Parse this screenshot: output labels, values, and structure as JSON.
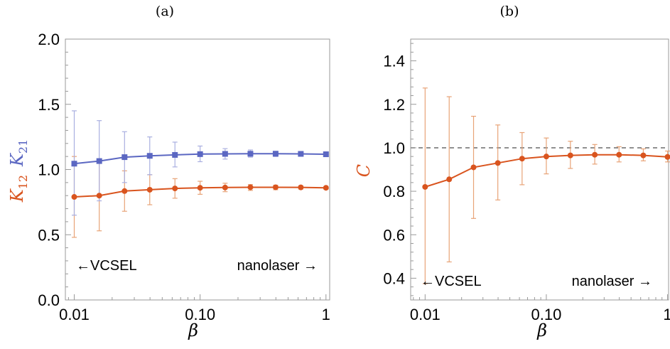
{
  "colors": {
    "series_orange": "#d9541e",
    "series_blue": "#5b67c2",
    "errbar_orange": "#e8a377",
    "errbar_blue": "#a9afe0",
    "reference_line": "#777777"
  },
  "chart_data": [
    {
      "panel": "(a)",
      "type": "line",
      "xscale": "log",
      "xlabel": "β",
      "ylabel_parts": [
        {
          "main": "K",
          "sub": "12",
          "series": 0
        },
        {
          "main": "K",
          "sub": "21",
          "series": 1
        }
      ],
      "xlim": [
        0.0085,
        1.07
      ],
      "ylim": [
        0.0,
        2.0
      ],
      "xticks": [
        0.01,
        0.1,
        1
      ],
      "xtick_labels": [
        "0.01",
        "0.10",
        "1"
      ],
      "yticks": [
        0,
        0.5,
        1,
        1.5,
        2
      ],
      "ytick_labels": [
        "0.0",
        "0.5",
        "1.0",
        "1.5",
        "2.0"
      ],
      "grid": false,
      "annotations": {
        "left": "←VCSEL",
        "right": "nanolaser →"
      },
      "series": [
        {
          "marker": "circle",
          "x": [
            0.01,
            0.0158,
            0.0251,
            0.0398,
            0.0631,
            0.1,
            0.158,
            0.251,
            0.398,
            0.631,
            1.0
          ],
          "values": [
            0.79,
            0.8,
            0.835,
            0.845,
            0.855,
            0.86,
            0.862,
            0.864,
            0.864,
            0.863,
            0.86
          ],
          "err_low": [
            0.48,
            0.53,
            0.68,
            0.73,
            0.78,
            0.81,
            0.83,
            0.84,
            0.845,
            0.85,
            0.85
          ],
          "err_high": [
            1.1,
            1.07,
            0.99,
            0.96,
            0.93,
            0.91,
            0.895,
            0.885,
            0.88,
            0.875,
            0.87
          ]
        },
        {
          "marker": "square",
          "x": [
            0.01,
            0.0158,
            0.0251,
            0.0398,
            0.0631,
            0.1,
            0.158,
            0.251,
            0.398,
            0.631,
            1.0
          ],
          "values": [
            1.045,
            1.065,
            1.095,
            1.105,
            1.112,
            1.118,
            1.12,
            1.121,
            1.121,
            1.12,
            1.117
          ],
          "err_low": [
            0.65,
            0.76,
            0.9,
            0.96,
            1.02,
            1.06,
            1.08,
            1.095,
            1.1,
            1.105,
            1.105
          ],
          "err_high": [
            1.45,
            1.375,
            1.29,
            1.25,
            1.21,
            1.18,
            1.16,
            1.15,
            1.14,
            1.135,
            1.13
          ]
        }
      ]
    },
    {
      "panel": "(b)",
      "type": "line",
      "xscale": "log",
      "xlabel": "β",
      "ylabel": "C",
      "xlim": [
        0.0076,
        1.02
      ],
      "ylim": [
        0.3,
        1.5
      ],
      "xticks": [
        0.01,
        0.1,
        1
      ],
      "xtick_labels": [
        "0.01",
        "0.10",
        "1"
      ],
      "yticks": [
        0.4,
        0.6,
        0.8,
        1.0,
        1.2,
        1.4
      ],
      "ytick_labels": [
        "0.4",
        "0.6",
        "0.8",
        "1.0",
        "1.2",
        "1.4"
      ],
      "reference_line": 1.0,
      "grid": false,
      "annotations": {
        "left": "←VCSEL",
        "right": "nanolaser →"
      },
      "series": [
        {
          "marker": "circle",
          "x": [
            0.01,
            0.0158,
            0.0251,
            0.0398,
            0.0631,
            0.1,
            0.158,
            0.251,
            0.398,
            0.631,
            1.0
          ],
          "values": [
            0.82,
            0.855,
            0.91,
            0.93,
            0.95,
            0.96,
            0.965,
            0.968,
            0.968,
            0.965,
            0.958
          ],
          "err_low": [
            0.375,
            0.475,
            0.675,
            0.76,
            0.83,
            0.88,
            0.905,
            0.925,
            0.935,
            0.94,
            0.935
          ],
          "err_high": [
            1.275,
            1.235,
            1.145,
            1.105,
            1.07,
            1.045,
            1.03,
            1.015,
            1.005,
            0.995,
            0.985
          ]
        }
      ]
    }
  ]
}
